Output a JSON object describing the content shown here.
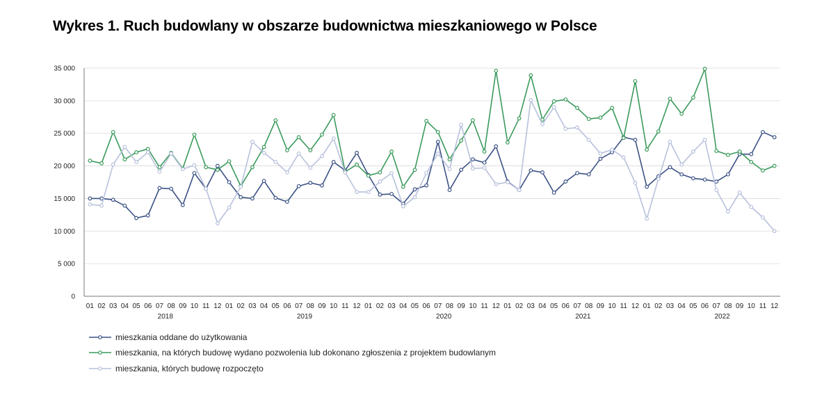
{
  "chart_data": {
    "type": "line",
    "title": "Wykres 1. Ruch budowlany w obszarze budownictwa mieszkaniowego w Polsce",
    "xlabel": "",
    "ylabel": "",
    "ylim": [
      0,
      35000
    ],
    "yticks": [
      0,
      5000,
      10000,
      15000,
      20000,
      25000,
      30000,
      35000
    ],
    "ytick_labels": [
      "0",
      "5 000",
      "10 000",
      "15 000",
      "20 000",
      "25 000",
      "30 000",
      "35 000"
    ],
    "grid": true,
    "legend_position": "bottom-left",
    "categories": [
      "01",
      "02",
      "03",
      "04",
      "05",
      "06",
      "07",
      "08",
      "09",
      "10",
      "11",
      "12",
      "01",
      "02",
      "03",
      "04",
      "05",
      "06",
      "07",
      "08",
      "09",
      "10",
      "11",
      "12",
      "01",
      "02",
      "03",
      "04",
      "05",
      "06",
      "07",
      "08",
      "09",
      "10",
      "11",
      "12",
      "01",
      "02",
      "03",
      "04",
      "05",
      "06",
      "07",
      "08",
      "09",
      "10",
      "11",
      "12",
      "01",
      "02",
      "03",
      "04",
      "05",
      "06",
      "07",
      "08",
      "09",
      "10",
      "11",
      "12"
    ],
    "years": [
      "2018",
      "2019",
      "2020",
      "2021",
      "2022"
    ],
    "series": [
      {
        "name": "mieszkania oddane do użytkowania",
        "color": "#3c5285",
        "values": [
          15000,
          15000,
          14800,
          13900,
          12000,
          12400,
          16600,
          16500,
          14000,
          18900,
          16500,
          20000,
          17500,
          15200,
          15000,
          17700,
          15100,
          14500,
          16900,
          17400,
          17000,
          20600,
          19300,
          22000,
          18600,
          15600,
          15700,
          14200,
          16400,
          17000,
          23700,
          16300,
          19400,
          21000,
          20500,
          23000,
          17600,
          16300,
          19300,
          19000,
          15900,
          17600,
          18900,
          18700,
          21100,
          22100,
          24400,
          24000,
          16800,
          18400,
          19800,
          18700,
          18100,
          17900,
          17600,
          18700,
          21800,
          21800,
          25200,
          24400
        ]
      },
      {
        "name": "mieszkania, na których budowę wydano pozwolenia lub dokonano zgłoszenia z projektem budowlanym",
        "color": "#3a9a5b",
        "values": [
          20800,
          20400,
          25200,
          21000,
          22100,
          22600,
          19800,
          22000,
          19600,
          24800,
          19800,
          19400,
          20700,
          16900,
          19800,
          22900,
          27000,
          22400,
          24400,
          22400,
          24800,
          27800,
          19100,
          20200,
          18500,
          19000,
          22200,
          16800,
          19400,
          26900,
          25200,
          21000,
          23900,
          27000,
          22200,
          34600,
          23600,
          27300,
          33900,
          27100,
          29900,
          30200,
          28900,
          27200,
          27400,
          28900,
          24300,
          33000,
          22500,
          25300,
          30300,
          28000,
          30500,
          34900,
          22300,
          21700,
          22200,
          20600,
          19300,
          20000
        ]
      },
      {
        "name": "mieszkania, których budowę rozpoczęto",
        "color": "#b8c1dc",
        "values": [
          14100,
          13900,
          20200,
          22900,
          20600,
          22100,
          19100,
          21900,
          19500,
          20100,
          16500,
          11200,
          13600,
          16800,
          23700,
          22000,
          20600,
          19000,
          21900,
          19700,
          21500,
          24200,
          19000,
          16000,
          16000,
          17600,
          18900,
          13800,
          15200,
          18900,
          21900,
          19500,
          26300,
          19600,
          19700,
          17200,
          17500,
          16300,
          30100,
          26400,
          29000,
          25700,
          25900,
          24000,
          21900,
          22500,
          21300,
          17400,
          11900,
          18000,
          23700,
          20200,
          22200,
          24000,
          16300,
          13000,
          15900,
          13700,
          12100,
          10000
        ]
      }
    ]
  }
}
